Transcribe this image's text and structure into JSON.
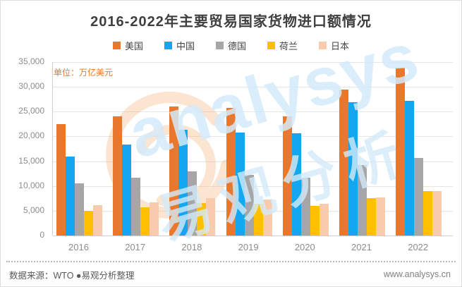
{
  "header": {
    "title": "2016-2022年主要贸易国家货物进口额情况"
  },
  "chart_data": {
    "type": "bar",
    "title": "2016-2022年主要贸易国家货物进口额情况",
    "unit_label": "单位：万亿美元",
    "categories": [
      "2016",
      "2017",
      "2018",
      "2019",
      "2020",
      "2021",
      "2022"
    ],
    "series": [
      {
        "name": "美国",
        "color": "#E8782D",
        "values": [
          22500,
          24100,
          26100,
          25700,
          24100,
          29400,
          33800
        ]
      },
      {
        "name": "中国",
        "color": "#14A7F0",
        "values": [
          15900,
          18400,
          21400,
          20800,
          20700,
          26900,
          27200
        ]
      },
      {
        "name": "德国",
        "color": "#A6A6A6",
        "values": [
          10500,
          11700,
          12900,
          12300,
          11700,
          14200,
          15700
        ]
      },
      {
        "name": "荷兰",
        "color": "#FFC000",
        "values": [
          5000,
          5700,
          6500,
          6400,
          6000,
          7600,
          9000
        ]
      },
      {
        "name": "日本",
        "color": "#F8CBAD",
        "values": [
          6100,
          6700,
          7500,
          7200,
          6400,
          7700,
          8900
        ]
      }
    ],
    "ylim": [
      0,
      35000
    ],
    "y_ticks_top_to_bottom": [
      "35,000",
      "30,000",
      "25,000",
      "20,000",
      "15,000",
      "10,000",
      "5,000",
      "0"
    ],
    "grid": true,
    "legend_position": "top"
  },
  "footer": {
    "source": "数据来源：WTO ●易观分析整理",
    "website": "www.analysys.cn"
  },
  "watermark": {
    "text_en": "analysys",
    "text_cn": "易观分析"
  }
}
